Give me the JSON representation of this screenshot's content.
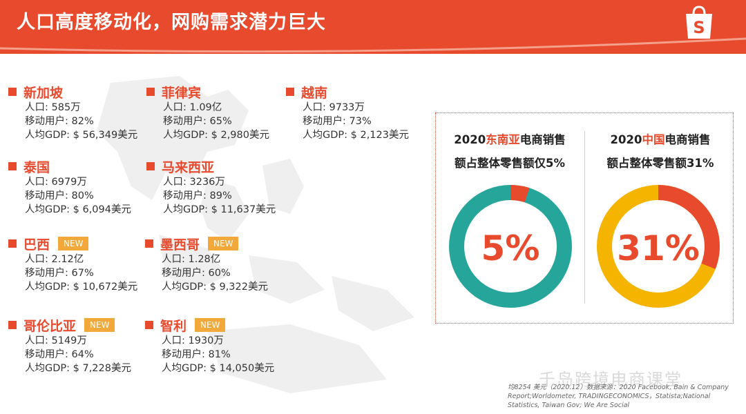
{
  "header": {
    "title": "人口高度移动化，网购需求潜力巨大",
    "logo_letter": "S",
    "bg_color": "#e84a2e"
  },
  "countries": [
    {
      "name": "新加坡",
      "new": false,
      "pop": "人口: 585万",
      "mobile": "移动用户: 82%",
      "gdp": "人均GDP: $ 56,349美元"
    },
    {
      "name": "菲律宾",
      "new": false,
      "pop": "人口: 1.09亿",
      "mobile": "移动用户: 65%",
      "gdp": "人均GDP: $ 2,980美元"
    },
    {
      "name": "越南",
      "new": false,
      "pop": "人口: 9733万",
      "mobile": "移动用户: 73%",
      "gdp": "人均GDP: $ 2,123美元"
    },
    {
      "name": "泰国",
      "new": false,
      "pop": "人口: 6979万",
      "mobile": "移动用户: 80%",
      "gdp": "人均GDP: $ 6,094美元"
    },
    {
      "name": "马来西亚",
      "new": false,
      "pop": "人口: 3236万",
      "mobile": "移动用户: 89%",
      "gdp": "人均GDP: $ 11,637美元"
    },
    {
      "name": "巴西",
      "new": true,
      "pop": "人口: 2.12亿",
      "mobile": "移动用户: 67%",
      "gdp": "人均GDP: $ 10,672美元"
    },
    {
      "name": "墨西哥",
      "new": true,
      "pop": "人口: 1.28亿",
      "mobile": "移动用户: 60%",
      "gdp": "人均GDP: $ 9,322美元"
    },
    {
      "name": "哥伦比亚",
      "new": true,
      "pop": "人口: 5149万",
      "mobile": "移动用户: 64%",
      "gdp": "人均GDP: $ 7,228美元"
    },
    {
      "name": "智利",
      "new": true,
      "pop": "人口: 1930万",
      "mobile": "移动用户: 81%",
      "gdp": "人均GDP: $ 14,050美元"
    }
  ],
  "new_badge": "NEW",
  "panels": [
    {
      "title_pre": "2020",
      "title_hl": "东南亚",
      "title_post": "电商销售",
      "line2": "额占整体零售额仅5%",
      "value_label": "5%",
      "share": 0.05,
      "ring_color": "#26a69a",
      "slice_color": "#e84a2e"
    },
    {
      "title_pre": "2020",
      "title_hl": "中国",
      "title_post": "电商销售",
      "line2": "额占整体零售额31%",
      "value_label": "31%",
      "share": 0.31,
      "ring_color": "#f5b400",
      "slice_color": "#e84a2e"
    }
  ],
  "watermark": "千岛跨境电商课堂",
  "source": "均8254 美元（2020.12）数据来源：2020 Facebook, Bain & Company Report;Worldometer, TRADINGECONOMICS，Statista;National Statistics, Taiwan Gov; We Are Social"
}
